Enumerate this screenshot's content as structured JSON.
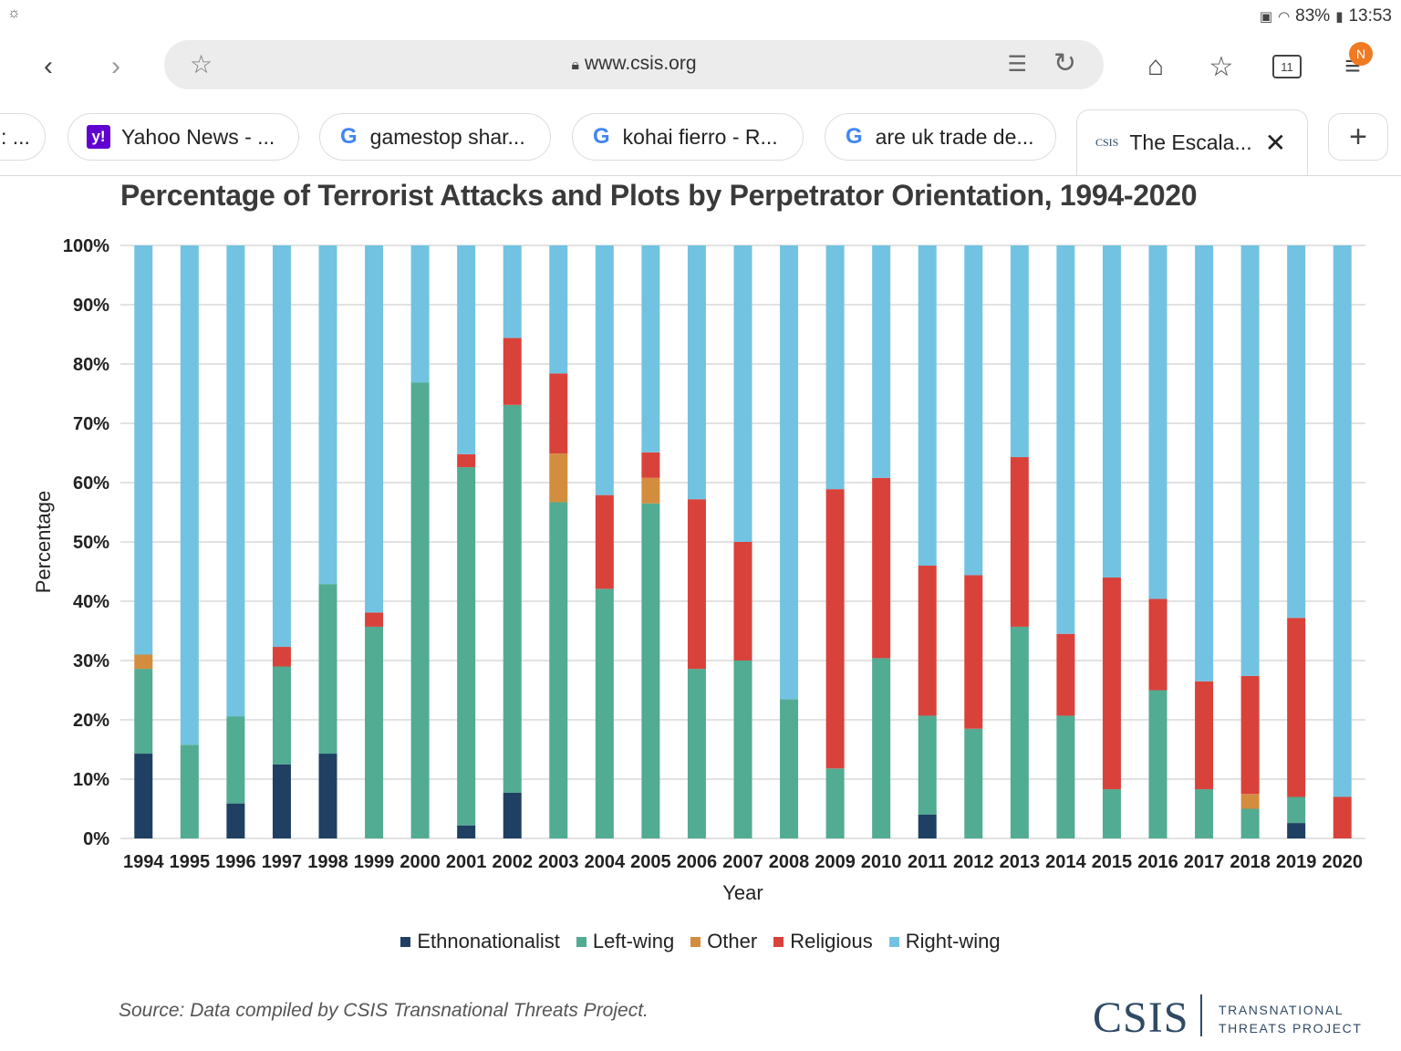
{
  "status_bar": {
    "left_icon": "settings-cloud-icon",
    "battery": "83%",
    "time": "13:53"
  },
  "browser": {
    "url": "www.csis.org",
    "tab_count": "11",
    "menu_badge": "N",
    "tabs": [
      {
        "label": ": ...",
        "icon": "partial-tab"
      },
      {
        "label": "Yahoo News - ...",
        "icon": "yahoo-icon"
      },
      {
        "label": "gamestop shar...",
        "icon": "google-icon"
      },
      {
        "label": "kohai fierro - R...",
        "icon": "google-icon"
      },
      {
        "label": "are uk trade de...",
        "icon": "google-icon"
      },
      {
        "label": "The Escala...",
        "icon": "csis-icon",
        "active": true
      }
    ],
    "tab_csis_mark": "CSIS"
  },
  "chart_data": {
    "type": "bar",
    "stacked": true,
    "title": "Percentage of Terrorist Attacks and Plots by Perpetrator Orientation, 1994-2020",
    "xlabel": "Year",
    "ylabel": "Percentage",
    "ylim": [
      0,
      100
    ],
    "yticks": [
      "0%",
      "10%",
      "20%",
      "30%",
      "40%",
      "50%",
      "60%",
      "70%",
      "80%",
      "90%",
      "100%"
    ],
    "categories": [
      "1994",
      "1995",
      "1996",
      "1997",
      "1998",
      "1999",
      "2000",
      "2001",
      "2002",
      "2003",
      "2004",
      "2005",
      "2006",
      "2007",
      "2008",
      "2009",
      "2010",
      "2011",
      "2012",
      "2013",
      "2014",
      "2015",
      "2016",
      "2017",
      "2018",
      "2019",
      "2020"
    ],
    "series": [
      {
        "name": "Ethnonationalist",
        "color": "#1f3f63",
        "values": [
          14.3,
          0,
          5.9,
          12.5,
          14.3,
          0,
          0,
          2.2,
          7.7,
          0,
          0,
          0,
          0,
          0,
          0,
          0,
          0,
          4,
          0,
          0,
          0,
          0,
          0,
          0,
          0,
          2.6,
          0
        ]
      },
      {
        "name": "Left-wing",
        "color": "#52ab93",
        "values": [
          14.3,
          15.8,
          14.7,
          16.5,
          28.6,
          35.7,
          76.9,
          60.4,
          65.4,
          56.7,
          42.1,
          56.5,
          28.6,
          30,
          23.5,
          11.8,
          30.4,
          16.7,
          18.5,
          35.7,
          20.7,
          8.3,
          25,
          8.3,
          5,
          4.4,
          0
        ]
      },
      {
        "name": "Other",
        "color": "#d38d3e",
        "values": [
          2.4,
          0,
          0,
          0,
          0,
          0,
          0,
          0,
          0,
          8.2,
          0,
          4.3,
          0,
          0,
          0,
          0,
          0,
          0,
          0,
          0,
          0,
          0,
          0,
          0,
          2.5,
          0,
          0
        ]
      },
      {
        "name": "Religious",
        "color": "#d9423a",
        "values": [
          0,
          0,
          0,
          3.3,
          0,
          2.4,
          0,
          2.2,
          11.3,
          13.5,
          15.8,
          4.3,
          28.6,
          20,
          0,
          47.1,
          30.4,
          25.3,
          25.9,
          28.6,
          13.8,
          35.7,
          15.4,
          18.2,
          19.9,
          30.2,
          7
        ]
      },
      {
        "name": "Right-wing",
        "color": "#72c3e2",
        "values": [
          69,
          84.2,
          79.4,
          67.7,
          57.1,
          61.9,
          23.1,
          35.2,
          15.6,
          21.6,
          42.1,
          34.9,
          42.8,
          50,
          76.5,
          41.1,
          39.2,
          54,
          55.6,
          35.7,
          65.5,
          56,
          59.6,
          73.5,
          72.6,
          62.8,
          93
        ]
      }
    ],
    "legend_position": "bottom"
  },
  "footer": {
    "source": "Source: Data compiled by CSIS Transnational Threats Project.",
    "logo": "CSIS",
    "logo_sub_1": "TRANSNATIONAL",
    "logo_sub_2": "THREATS PROJECT"
  }
}
